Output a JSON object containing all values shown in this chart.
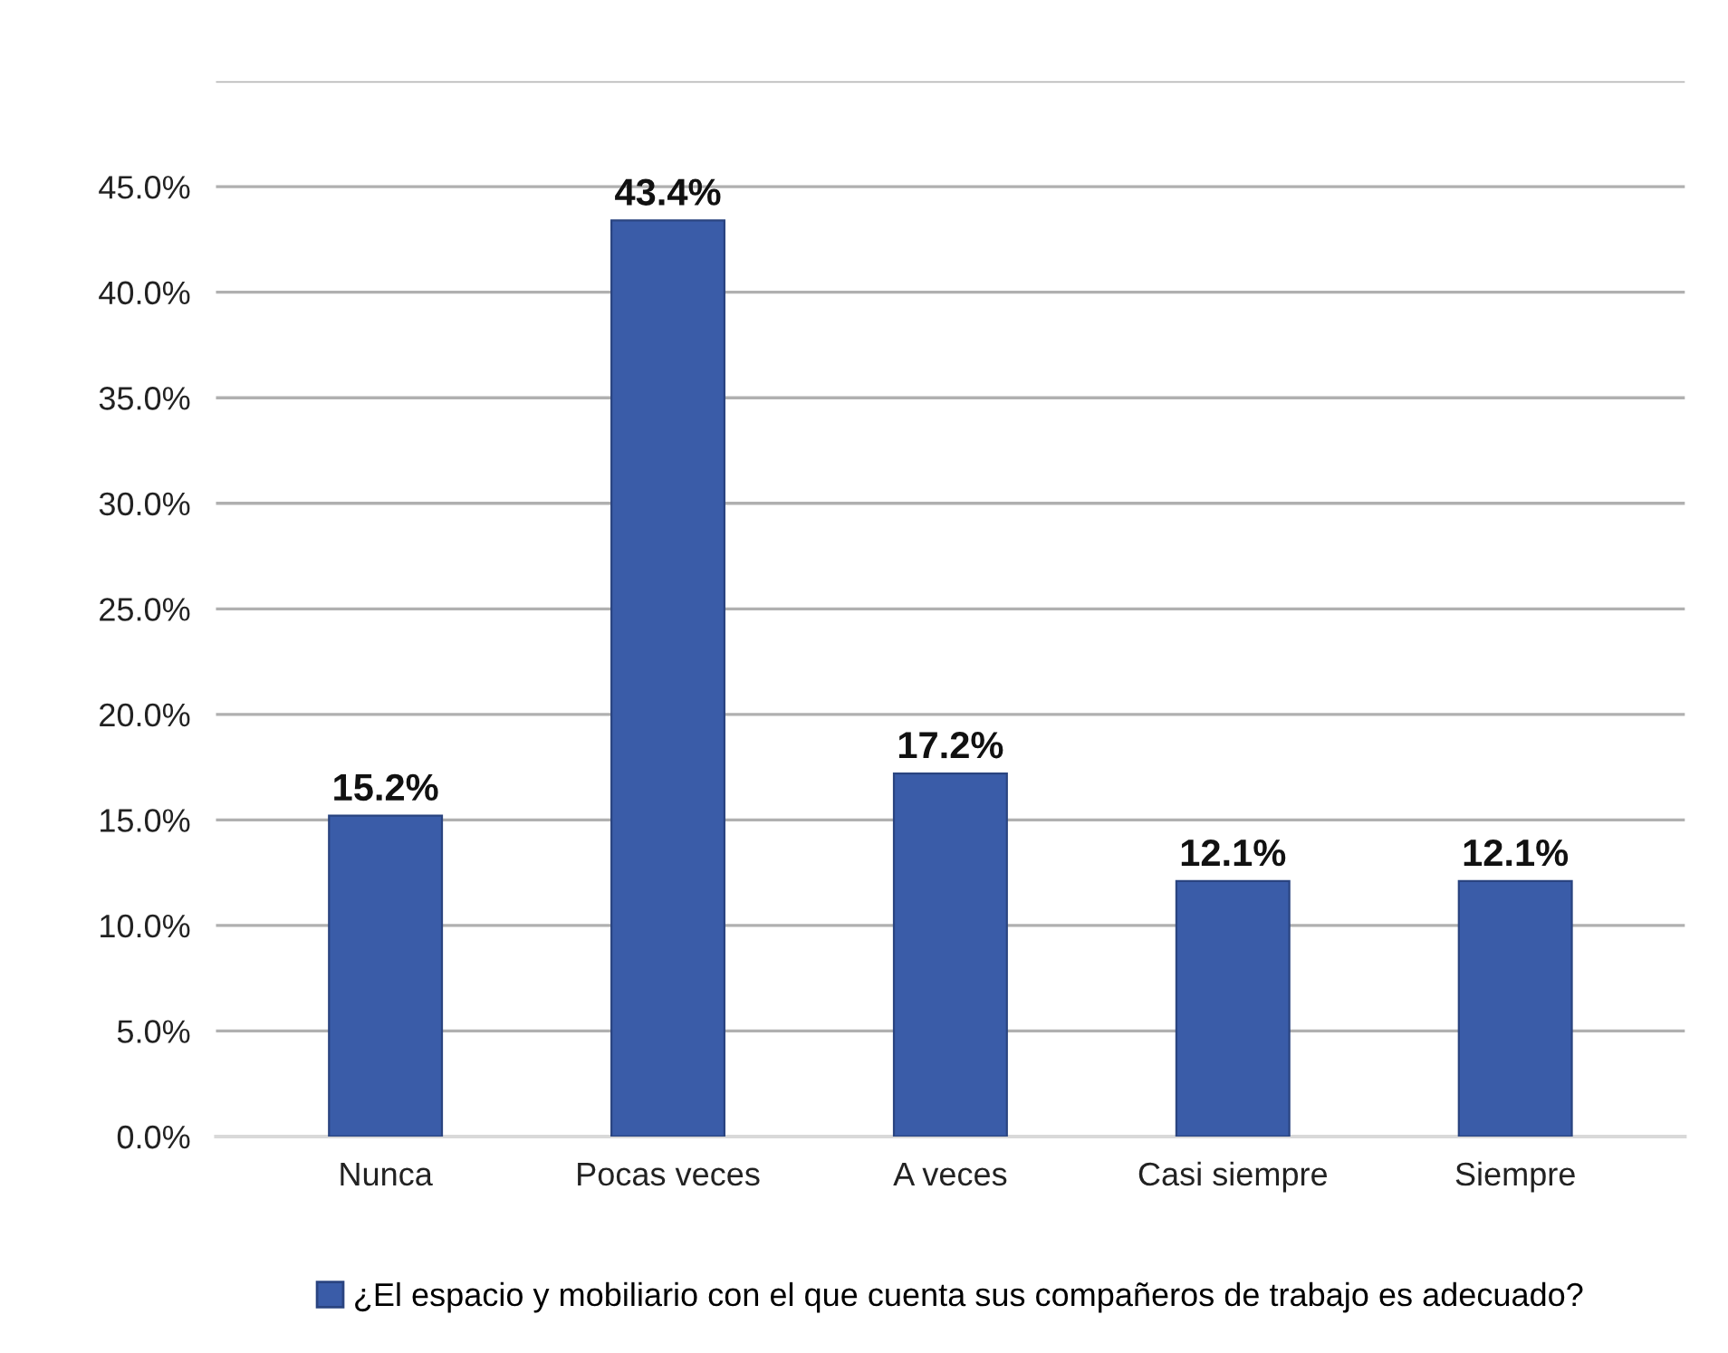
{
  "chart_data": {
    "type": "bar",
    "categories": [
      "Nunca",
      "Pocas veces",
      "A veces",
      "Casi siempre",
      "Siempre"
    ],
    "series": [
      {
        "name": "¿El espacio y mobiliario con el que cuenta sus compañeros de trabajo es adecuado?",
        "color": "#3a5ca8",
        "values": [
          15.2,
          43.4,
          17.2,
          12.1,
          12.1
        ]
      }
    ],
    "value_labels": [
      "15.2%",
      "43.4%",
      "17.2%",
      "12.1%",
      "12.1%"
    ],
    "ylim": [
      0,
      50
    ],
    "yticks": [
      {
        "value": 0,
        "label": "0.0%"
      },
      {
        "value": 5,
        "label": "5.0%"
      },
      {
        "value": 10,
        "label": "10.0%"
      },
      {
        "value": 15,
        "label": "15.0%"
      },
      {
        "value": 20,
        "label": "20.0%"
      },
      {
        "value": 25,
        "label": "25.0%"
      },
      {
        "value": 30,
        "label": "30.0%"
      },
      {
        "value": 35,
        "label": "35.0%"
      },
      {
        "value": 40,
        "label": "40.0%"
      },
      {
        "value": 45,
        "label": "45.0%"
      },
      {
        "value": 50,
        "label": null
      }
    ],
    "grid": "y",
    "legend": "bottom"
  }
}
